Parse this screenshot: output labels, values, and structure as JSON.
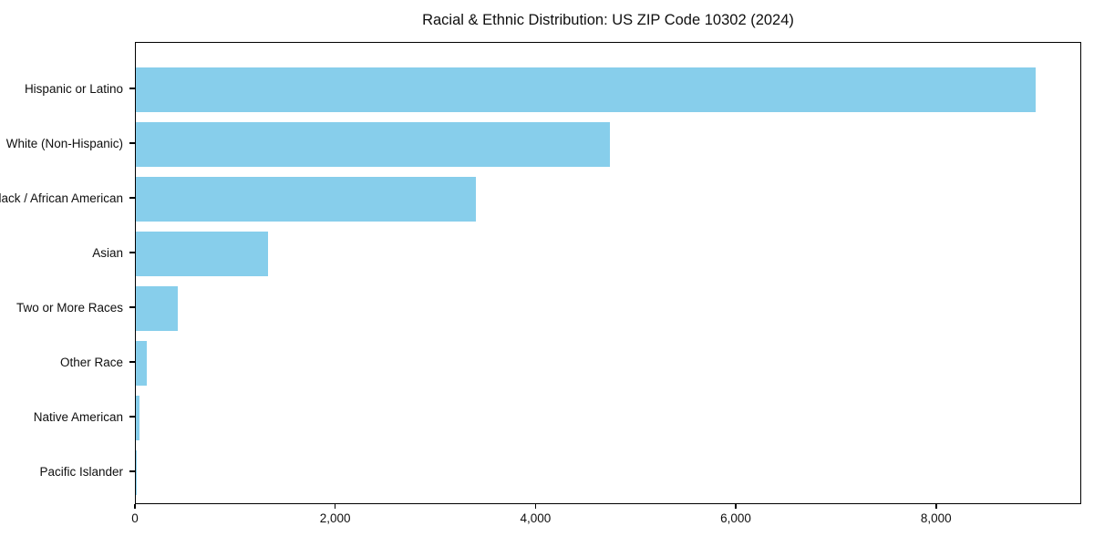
{
  "chart_data": {
    "type": "bar",
    "orientation": "horizontal",
    "title": "Racial & Ethnic Distribution: US ZIP Code 10302 (2024)",
    "xlabel": "",
    "ylabel": "",
    "grid": false,
    "legend": false,
    "bar_color": "#87CEEB",
    "xlim": [
      0,
      9450
    ],
    "categories": [
      "Hispanic or Latino",
      "White (Non-Hispanic)",
      "Black / African American",
      "Asian",
      "Two or More Races",
      "Other Race",
      "Native American",
      "Pacific Islander"
    ],
    "values": [
      9000,
      4740,
      3400,
      1320,
      420,
      110,
      40,
      10
    ],
    "xticks": [
      {
        "value": 0,
        "label": "0"
      },
      {
        "value": 2000,
        "label": "2,000"
      },
      {
        "value": 4000,
        "label": "4,000"
      },
      {
        "value": 6000,
        "label": "6,000"
      },
      {
        "value": 8000,
        "label": "8,000"
      }
    ]
  }
}
